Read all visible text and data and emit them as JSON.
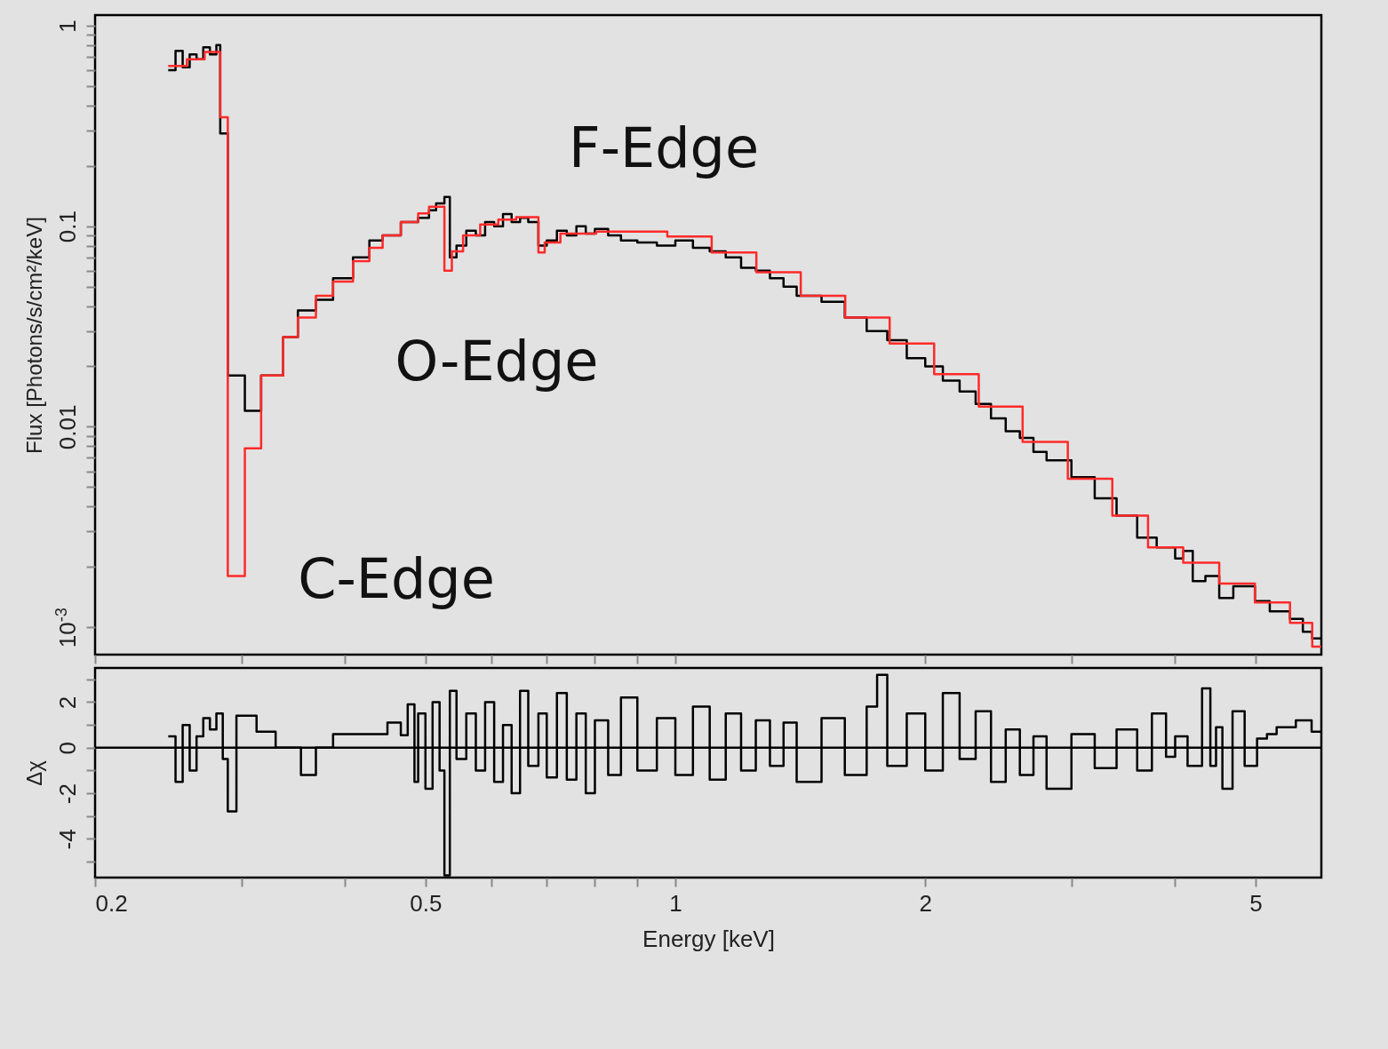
{
  "chart_data": [
    {
      "type": "step",
      "ylabel": "Flux [Photons/s/cm²/keV]",
      "log": "xy",
      "tick_labels": "y",
      "xlim": [
        0.2,
        6.0
      ],
      "xticks": [
        0.2,
        {
          "value": 0.3,
          "label": null
        },
        {
          "value": 0.4,
          "label": null
        },
        0.5,
        {
          "value": 0.6,
          "label": null
        },
        {
          "value": 0.7,
          "label": null
        },
        {
          "value": 0.8,
          "label": null
        },
        {
          "value": 0.9,
          "label": null
        },
        1,
        2,
        {
          "value": 3,
          "label": null
        },
        {
          "value": 4,
          "label": null
        },
        5
      ],
      "ylim": [
        0.00073,
        1.13
      ],
      "yticks": [
        {
          "value": 0.001,
          "label": "10$^{-3}$"
        },
        {
          "value": 0.002,
          "label": null
        },
        {
          "value": 0.003,
          "label": null
        },
        {
          "value": 0.004,
          "label": null
        },
        {
          "value": 0.005,
          "label": null
        },
        {
          "value": 0.006,
          "label": null
        },
        {
          "value": 0.007,
          "label": null
        },
        {
          "value": 0.008,
          "label": null
        },
        {
          "value": 0.009,
          "label": null
        },
        0.01,
        {
          "value": 0.02,
          "label": null
        },
        {
          "value": 0.03,
          "label": null
        },
        {
          "value": 0.04,
          "label": null
        },
        {
          "value": 0.05,
          "label": null
        },
        {
          "value": 0.06,
          "label": null
        },
        {
          "value": 0.07,
          "label": null
        },
        {
          "value": 0.08,
          "label": null
        },
        {
          "value": 0.09,
          "label": null
        },
        0.1,
        {
          "value": 0.2,
          "label": null
        },
        {
          "value": 0.3,
          "label": null
        },
        {
          "value": 0.4,
          "label": null
        },
        {
          "value": 0.5,
          "label": null
        },
        {
          "value": 0.6,
          "label": null
        },
        {
          "value": 0.7,
          "label": null
        },
        {
          "value": 0.8,
          "label": null
        },
        {
          "value": 0.9,
          "label": null
        },
        1
      ],
      "series": [
        {
          "color": "#000000",
          "x": [
            0.245,
            0.25,
            0.255,
            0.26,
            0.265,
            0.27,
            0.275,
            0.28,
            0.283,
            0.289,
            0.303,
            0.317,
            0.337,
            0.351,
            0.369,
            0.387,
            0.409,
            0.428,
            0.444,
            0.467,
            0.49,
            0.505,
            0.515,
            0.527,
            0.535,
            0.545,
            0.56,
            0.575,
            0.59,
            0.605,
            0.62,
            0.635,
            0.65,
            0.665,
            0.684,
            0.7,
            0.72,
            0.74,
            0.76,
            0.78,
            0.8,
            0.83,
            0.86,
            0.9,
            0.95,
            1.0,
            1.05,
            1.1,
            1.15,
            1.2,
            1.25,
            1.3,
            1.35,
            1.4,
            1.5,
            1.6,
            1.7,
            1.8,
            1.9,
            2.0,
            2.1,
            2.2,
            2.3,
            2.4,
            2.5,
            2.6,
            2.7,
            2.8,
            3.0,
            3.2,
            3.4,
            3.6,
            3.8,
            4.0,
            4.09,
            4.2,
            4.35,
            4.52,
            4.7,
            4.99,
            5.2,
            5.5,
            5.7,
            5.85,
            6.0
          ],
          "values": [
            0.6,
            0.75,
            0.62,
            0.72,
            0.68,
            0.78,
            0.72,
            0.8,
            0.29,
            0.018,
            0.012,
            0.018,
            0.028,
            0.038,
            0.043,
            0.055,
            0.07,
            0.085,
            0.09,
            0.105,
            0.11,
            0.12,
            0.13,
            0.14,
            0.07,
            0.08,
            0.095,
            0.09,
            0.105,
            0.1,
            0.115,
            0.105,
            0.11,
            0.105,
            0.08,
            0.085,
            0.095,
            0.09,
            0.1,
            0.092,
            0.097,
            0.09,
            0.085,
            0.083,
            0.08,
            0.085,
            0.078,
            0.075,
            0.07,
            0.062,
            0.06,
            0.055,
            0.05,
            0.045,
            0.042,
            0.035,
            0.03,
            0.027,
            0.022,
            0.02,
            0.017,
            0.015,
            0.013,
            0.011,
            0.0095,
            0.0088,
            0.0075,
            0.0068,
            0.0056,
            0.0044,
            0.0036,
            0.0028,
            0.0025,
            0.0022,
            0.0024,
            0.0017,
            0.0018,
            0.0014,
            0.0016,
            0.00135,
            0.0012,
            0.0011,
            0.00095,
            0.00088,
            0.00088
          ]
        },
        {
          "color": "#ff2a2a",
          "x": [
            0.245,
            0.258,
            0.271,
            0.283,
            0.289,
            0.303,
            0.317,
            0.337,
            0.351,
            0.369,
            0.387,
            0.409,
            0.428,
            0.444,
            0.467,
            0.49,
            0.505,
            0.527,
            0.538,
            0.555,
            0.582,
            0.612,
            0.643,
            0.684,
            0.696,
            0.727,
            0.803,
            0.886,
            0.978,
            1.106,
            1.252,
            1.416,
            1.602,
            1.812,
            2.05,
            2.32,
            2.62,
            2.97,
            3.36,
            3.71,
            4.09,
            4.52,
            4.99,
            5.5,
            5.85,
            6.0
          ],
          "values": [
            0.63,
            0.68,
            0.74,
            0.35,
            0.0018,
            0.0078,
            0.018,
            0.028,
            0.035,
            0.045,
            0.053,
            0.067,
            0.078,
            0.09,
            0.105,
            0.116,
            0.125,
            0.06,
            0.075,
            0.09,
            0.102,
            0.108,
            0.111,
            0.074,
            0.083,
            0.092,
            0.094,
            0.094,
            0.089,
            0.074,
            0.059,
            0.045,
            0.035,
            0.026,
            0.0183,
            0.0126,
            0.0084,
            0.0055,
            0.0036,
            0.0025,
            0.0021,
            0.00165,
            0.00133,
            0.00105,
            0.0008,
            0.0008
          ]
        }
      ],
      "annotations": [
        "F-Edge",
        "O-Edge",
        "C-Edge"
      ]
    },
    {
      "type": "step",
      "xlabel": "Energy [keV]",
      "ylabel": "Δχ",
      "log": "x",
      "xlim": [
        0.2,
        6.0
      ],
      "xticks": [
        0.2,
        {
          "value": 0.3,
          "label": null
        },
        {
          "value": 0.4,
          "label": null
        },
        0.5,
        {
          "value": 0.6,
          "label": null
        },
        {
          "value": 0.7,
          "label": null
        },
        {
          "value": 0.8,
          "label": null
        },
        {
          "value": 0.9,
          "label": null
        },
        1,
        2,
        {
          "value": 3,
          "label": null
        },
        {
          "value": 4,
          "label": null
        },
        5
      ],
      "ylim": [
        -5.7,
        3.5
      ],
      "yticks": [
        {
          "value": -5,
          "label": null
        },
        -4,
        {
          "value": -3,
          "label": null
        },
        -2,
        {
          "value": -1,
          "label": null
        },
        0,
        {
          "value": 1,
          "label": null
        },
        2,
        {
          "value": 3,
          "label": null
        }
      ],
      "ref_lines": [
        {
          "axis": "y",
          "value": 0,
          "color": "#000000"
        }
      ],
      "series": [
        {
          "color": "#000000",
          "x": [
            0.245,
            0.25,
            0.255,
            0.26,
            0.265,
            0.27,
            0.275,
            0.28,
            0.285,
            0.289,
            0.296,
            0.313,
            0.33,
            0.354,
            0.369,
            0.387,
            0.45,
            0.467,
            0.476,
            0.485,
            0.49,
            0.5,
            0.51,
            0.52,
            0.527,
            0.535,
            0.545,
            0.56,
            0.575,
            0.59,
            0.605,
            0.62,
            0.635,
            0.65,
            0.665,
            0.684,
            0.7,
            0.72,
            0.74,
            0.76,
            0.78,
            0.8,
            0.83,
            0.86,
            0.9,
            0.95,
            1.0,
            1.05,
            1.1,
            1.15,
            1.2,
            1.25,
            1.3,
            1.35,
            1.4,
            1.5,
            1.6,
            1.7,
            1.75,
            1.8,
            1.9,
            2.0,
            2.1,
            2.2,
            2.3,
            2.4,
            2.5,
            2.6,
            2.7,
            2.8,
            3.0,
            3.2,
            3.4,
            3.6,
            3.75,
            3.9,
            4.0,
            4.14,
            4.31,
            4.41,
            4.48,
            4.56,
            4.69,
            4.85,
            5.02,
            5.16,
            5.3,
            5.59,
            5.84,
            6.0
          ],
          "values": [
            0.5,
            -1.5,
            1,
            -1,
            0.5,
            1.3,
            0.8,
            1.5,
            -0.5,
            -2.8,
            1.4,
            0.7,
            0,
            -1.2,
            0,
            0.6,
            1.1,
            0.55,
            1.9,
            -1.5,
            1.5,
            -1.8,
            2,
            -1,
            -5.6,
            2.5,
            -0.5,
            1.5,
            -1,
            2,
            -1.5,
            1,
            -2,
            2.5,
            -0.8,
            1.5,
            -1.3,
            2.4,
            -1.4,
            1.5,
            -2,
            1.2,
            -1.2,
            2.2,
            -1,
            1.3,
            -1.2,
            1.8,
            -1.4,
            1.5,
            -1,
            1.2,
            -0.8,
            1.1,
            -1.5,
            1.3,
            -1.2,
            1.8,
            3.2,
            -0.8,
            1.5,
            -1,
            2.4,
            -0.5,
            1.6,
            -1.5,
            0.8,
            -1.2,
            0.5,
            -1.8,
            0.6,
            -0.9,
            0.8,
            -1,
            1.5,
            -0.4,
            0.5,
            -0.8,
            2.6,
            -0.8,
            0.9,
            -1.8,
            1.6,
            -0.8,
            0.4,
            0.6,
            0.9,
            1.2,
            0.7,
            0.7
          ]
        }
      ]
    }
  ]
}
